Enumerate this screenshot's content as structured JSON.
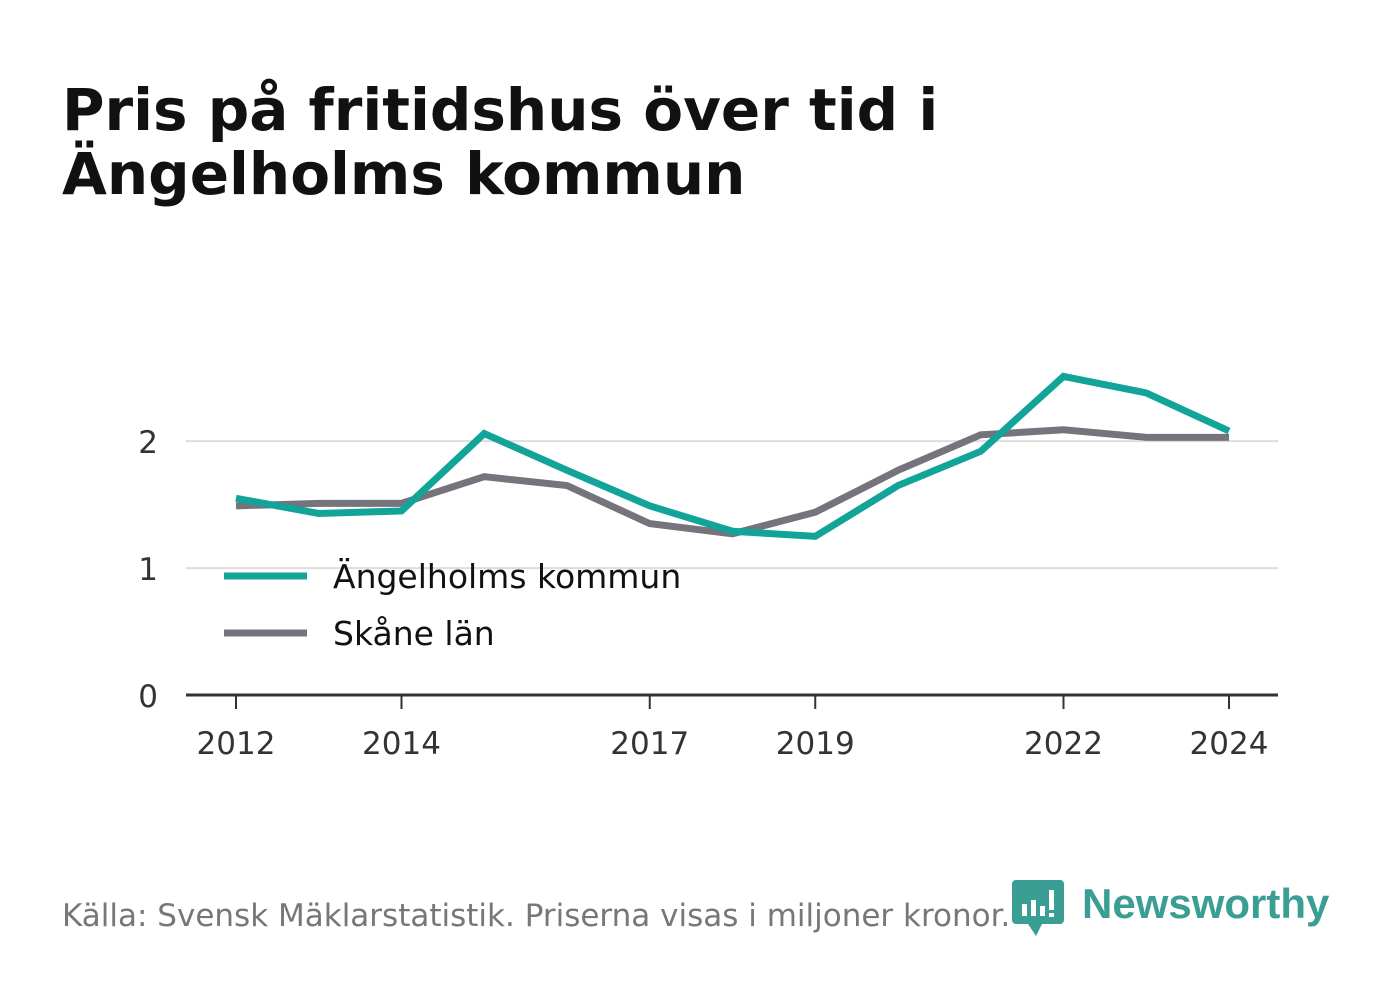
{
  "title": "Pris på fritidshus över tid i Ängelholms kommun",
  "footer": "Källa: Svensk Mäklarstatistik. Priserna visas i miljoner kronor.",
  "brand": "Newsworthy",
  "colors": {
    "angelholm": "#12a399",
    "skane": "#75737c",
    "grid": "#dddddd",
    "axis": "#333333"
  },
  "chart_data": {
    "type": "line",
    "x": [
      2012,
      2013,
      2014,
      2015,
      2016,
      2017,
      2018,
      2019,
      2020,
      2021,
      2022,
      2023,
      2024
    ],
    "x_ticks": [
      2012,
      2014,
      2017,
      2019,
      2022,
      2024
    ],
    "y_ticks": [
      0,
      1,
      2
    ],
    "ylim": [
      0,
      2.6
    ],
    "grid": true,
    "legend_position": "bottom-left",
    "series": [
      {
        "name": "Ängelholms kommun",
        "color": "#12a399",
        "values": [
          1.55,
          1.43,
          1.45,
          2.06,
          1.77,
          1.49,
          1.29,
          1.25,
          1.65,
          1.92,
          2.51,
          2.38,
          2.08
        ]
      },
      {
        "name": "Skåne län",
        "color": "#75737c",
        "values": [
          1.49,
          1.51,
          1.51,
          1.72,
          1.65,
          1.35,
          1.27,
          1.44,
          1.77,
          2.05,
          2.09,
          2.03,
          2.03
        ]
      }
    ]
  }
}
